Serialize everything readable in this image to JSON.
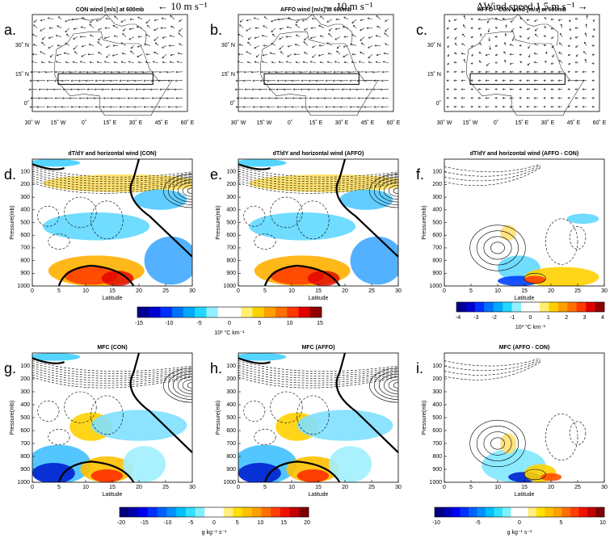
{
  "headers": [
    "← 10 m s⁻¹",
    "← 10 m s⁻¹",
    "ΔWind speed  1.5 m s⁻¹ →"
  ],
  "map_xticks": [
    "30˚ W",
    "15˚ W",
    "0˚",
    "15˚ E",
    "30˚ E",
    "45˚ E",
    "60˚ E"
  ],
  "map_yticks": [
    "30˚ N",
    "15˚ N",
    "0˚"
  ],
  "profile_xticks": [
    "0",
    "5",
    "10",
    "15",
    "20",
    "25",
    "30"
  ],
  "profile_yticks": [
    "100",
    "200",
    "300",
    "400",
    "500",
    "600",
    "700",
    "800",
    "900",
    "1000"
  ],
  "x_label": "Latitude",
  "y_label": "Pressure(mb)",
  "panels": [
    {
      "label": "a.",
      "title": "CON wind [m/s] at 600mb"
    },
    {
      "label": "b.",
      "title": "AFFO wind [m/s] at 600mb"
    },
    {
      "label": "c.",
      "title": "AFFO - CON wind [m/s] at 600mb"
    },
    {
      "label": "d.",
      "title": "dT/dY and horizontal wind (CON)"
    },
    {
      "label": "e.",
      "title": "dT/dY and horizontal wind (AFFO)"
    },
    {
      "label": "f.",
      "title": "dT/dY and horizontal wind (AFFO - CON)"
    },
    {
      "label": "g.",
      "title": "MFC (CON)"
    },
    {
      "label": "h.",
      "title": "MFC (AFFO)"
    },
    {
      "label": "i.",
      "title": "MFC (AFFO - CON)"
    }
  ],
  "colorbars": [
    {
      "ticks": [
        "-15",
        "-10",
        "-5",
        "0",
        "5",
        "10",
        "15"
      ],
      "units": "10³ °C km⁻¹"
    },
    {
      "ticks": [
        "-4",
        "-3",
        "-2",
        "-1",
        "0",
        "1",
        "2",
        "3",
        "4"
      ],
      "units": "10³ °C km⁻¹"
    },
    {
      "ticks": [
        "-20",
        "-15",
        "-10",
        "-5",
        "0",
        "5",
        "10",
        "15",
        "20"
      ],
      "units": "g kg⁻¹ s⁻¹"
    },
    {
      "ticks": [
        "-10",
        "-5",
        "0",
        "5",
        "10"
      ],
      "units": "g kg⁻¹ s⁻¹"
    }
  ]
}
